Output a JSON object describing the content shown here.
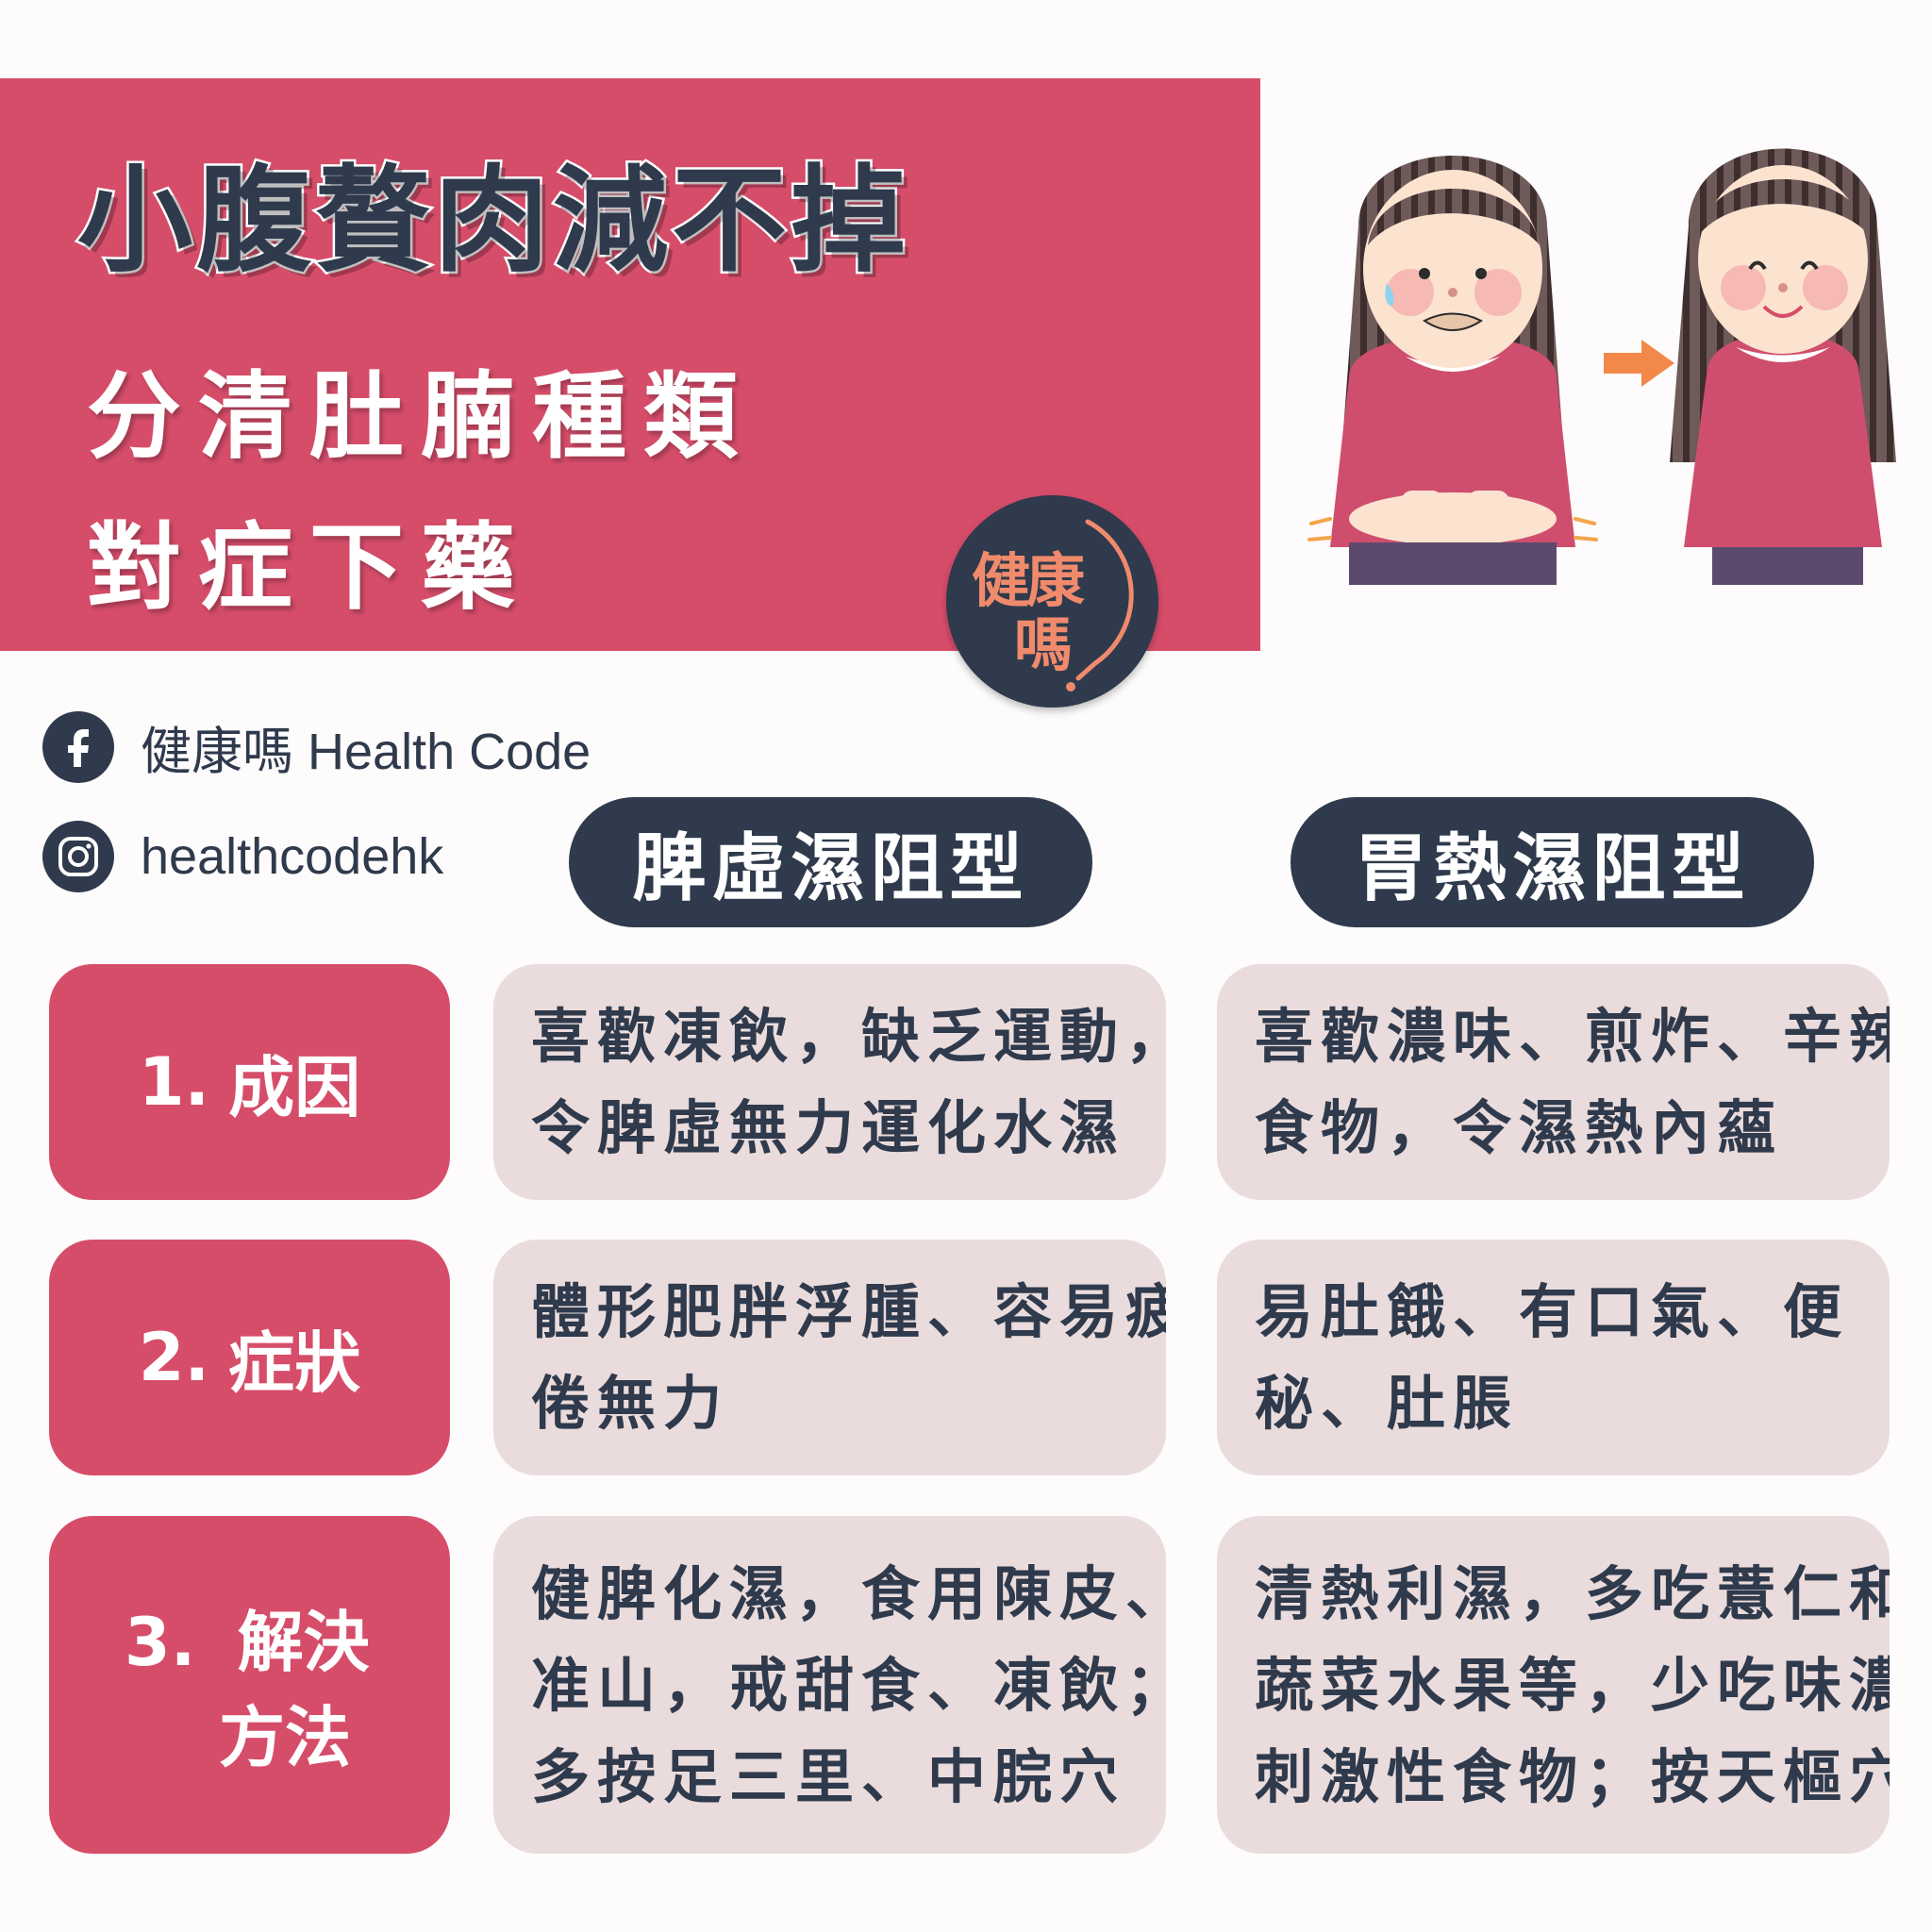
{
  "header": {
    "title": "小腹贅肉減不掉",
    "subtitle_line1": "分清肚腩種類",
    "subtitle_line2": "對症下藥"
  },
  "logo": {
    "line1": "健康",
    "line2": "嗎"
  },
  "social": {
    "facebook_label": "健康嗎 Health Code",
    "instagram_label": "healthcodehk"
  },
  "columns": [
    {
      "label": "脾虛濕阻型"
    },
    {
      "label": "胃熱濕阻型"
    }
  ],
  "rows": [
    {
      "number": "1.",
      "label": "成因",
      "col_a": [
        "喜歡凍飲，缺乏運動，",
        "令脾虛無力運化水濕"
      ],
      "col_b": [
        "喜歡濃味、煎炸、辛辣",
        "食物，令濕熱內蘊"
      ]
    },
    {
      "number": "2.",
      "label": "症狀",
      "col_a": [
        "體形肥胖浮腫、容易疲",
        "倦無力"
      ],
      "col_b": [
        "易肚餓、有口氣、便",
        "秘、肚脹"
      ]
    },
    {
      "number": "3.",
      "label_line1": "解決",
      "label_line2": "方法",
      "col_a": [
        "健脾化濕，食用陳皮、",
        "准山，戒甜食、凍飲；",
        "多按足三里、中脘穴"
      ],
      "col_b": [
        "清熱利濕，多吃薏仁和",
        "蔬菜水果等，少吃味濃",
        "刺激性食物；按天樞穴"
      ]
    }
  ],
  "colors": {
    "brand_pink": "#d64d6a",
    "navy": "#2f3a4c",
    "cell_bg": "#eadcdc",
    "logo_orange": "#f08a6c"
  },
  "icons": {
    "facebook": "facebook-icon",
    "instagram": "instagram-icon",
    "arrow": "arrow-right-icon"
  }
}
